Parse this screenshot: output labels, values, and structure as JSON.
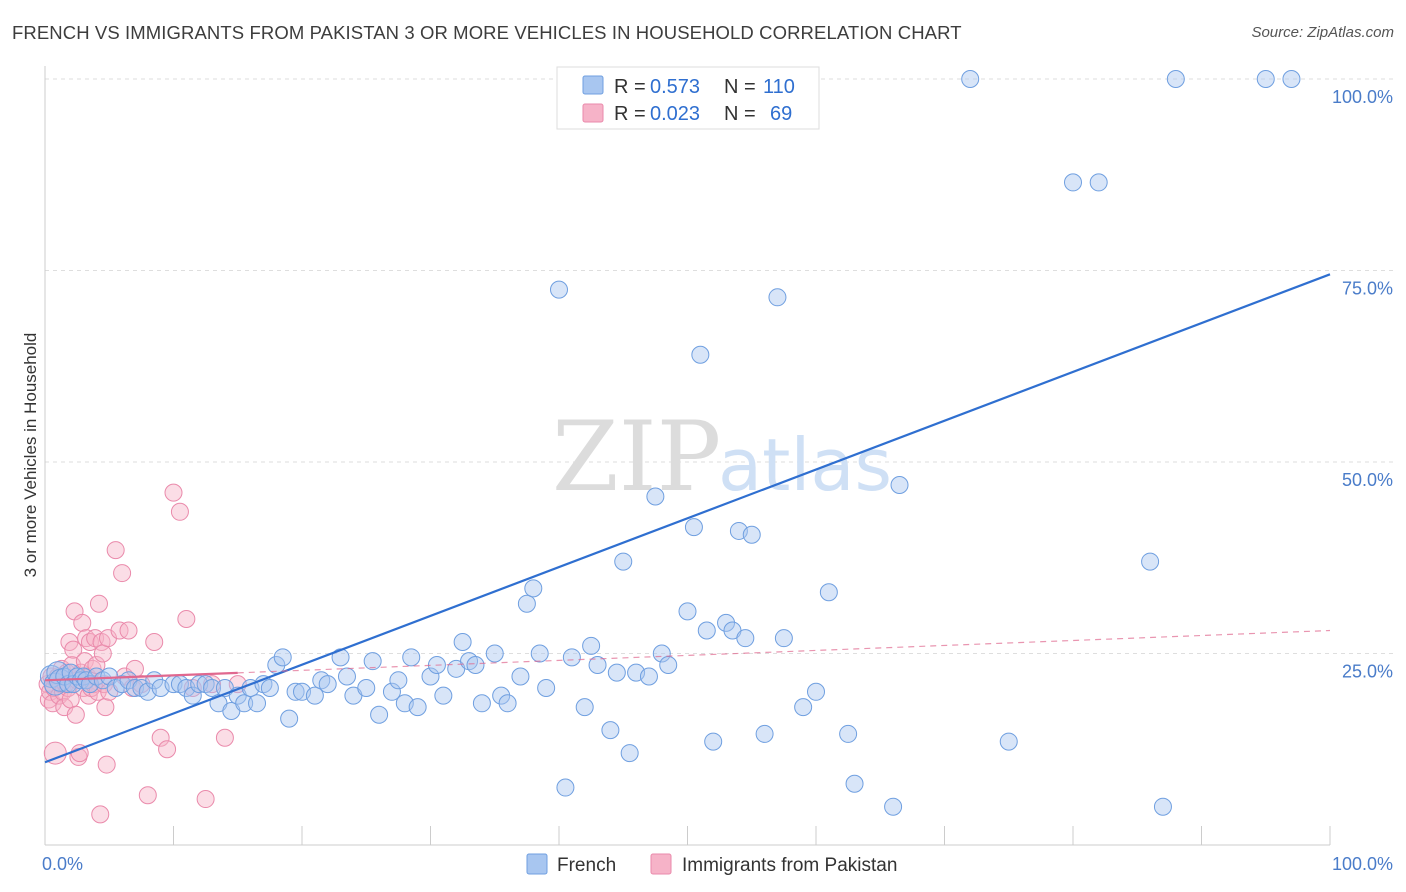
{
  "title": "FRENCH VS IMMIGRANTS FROM PAKISTAN 3 OR MORE VEHICLES IN HOUSEHOLD CORRELATION CHART",
  "source": "Source: ZipAtlas.com",
  "watermark": {
    "zip": "ZIP",
    "atlas": "atlas"
  },
  "colors": {
    "french": "#a8c6f0",
    "french_stroke": "#6f9fe0",
    "french_line": "#2f6fd0",
    "pakistan": "#f6b3c8",
    "pakistan_stroke": "#ea8aab",
    "pakistan_line": "#e0688f"
  },
  "legend_box": {
    "rows": [
      {
        "r_label": "R =",
        "r_value": "0.573",
        "n_label": "N =",
        "n_value": "110"
      },
      {
        "r_label": "R =",
        "r_value": "0.023",
        "n_label": "N =",
        "n_value": "69"
      }
    ]
  },
  "bottom_legend": [
    "French",
    "Immigrants from Pakistan"
  ],
  "chart_data": {
    "type": "scatter",
    "xlabel": "",
    "ylabel": "3 or more Vehicles in Household",
    "xlim": [
      0,
      100
    ],
    "ylim": [
      0,
      100
    ],
    "x_tick_labels": [
      "0.0%",
      "100.0%"
    ],
    "y_tick_labels": [
      {
        "value": 100,
        "label": "100.0%"
      },
      {
        "value": 75,
        "label": "75.0%"
      },
      {
        "value": 50,
        "label": "50.0%"
      },
      {
        "value": 25,
        "label": "25.0%"
      }
    ],
    "grid": "horizontal dashed",
    "legend_position": "top-center",
    "series": [
      {
        "name": "French",
        "R": 0.573,
        "N": 110,
        "trend": [
          [
            0,
            10.8
          ],
          [
            100,
            74.5
          ]
        ],
        "points": [
          [
            0.5,
            22
          ],
          [
            0.8,
            21
          ],
          [
            1,
            22.5
          ],
          [
            1.2,
            21.5
          ],
          [
            1.5,
            22
          ],
          [
            1.8,
            21
          ],
          [
            2,
            22.5
          ],
          [
            2.2,
            21
          ],
          [
            2.5,
            22
          ],
          [
            2.8,
            21.5
          ],
          [
            3,
            22
          ],
          [
            3.2,
            21.5
          ],
          [
            3.5,
            21
          ],
          [
            4,
            22
          ],
          [
            4.5,
            21.5
          ],
          [
            5,
            22
          ],
          [
            5.5,
            20.5
          ],
          [
            6,
            21
          ],
          [
            6.5,
            21.5
          ],
          [
            7,
            20.5
          ],
          [
            7.5,
            20.5
          ],
          [
            8,
            20
          ],
          [
            8.5,
            21.5
          ],
          [
            9,
            20.5
          ],
          [
            10,
            21
          ],
          [
            10.5,
            21
          ],
          [
            11,
            20.5
          ],
          [
            11.5,
            19.5
          ],
          [
            12,
            21
          ],
          [
            12.5,
            21
          ],
          [
            13,
            20.5
          ],
          [
            13.5,
            18.5
          ],
          [
            14,
            20.5
          ],
          [
            14.5,
            17.5
          ],
          [
            15,
            19.5
          ],
          [
            15.5,
            18.5
          ],
          [
            16,
            20.5
          ],
          [
            16.5,
            18.5
          ],
          [
            17,
            21
          ],
          [
            17.5,
            20.5
          ],
          [
            18,
            23.5
          ],
          [
            18.5,
            24.5
          ],
          [
            19,
            16.5
          ],
          [
            19.5,
            20
          ],
          [
            20,
            20
          ],
          [
            21,
            19.5
          ],
          [
            21.5,
            21.5
          ],
          [
            22,
            21
          ],
          [
            23,
            24.5
          ],
          [
            23.5,
            22
          ],
          [
            24,
            19.5
          ],
          [
            25,
            20.5
          ],
          [
            25.5,
            24
          ],
          [
            26,
            17
          ],
          [
            27,
            20
          ],
          [
            27.5,
            21.5
          ],
          [
            28,
            18.5
          ],
          [
            28.5,
            24.5
          ],
          [
            29,
            18
          ],
          [
            30,
            22
          ],
          [
            30.5,
            23.5
          ],
          [
            31,
            19.5
          ],
          [
            32,
            23
          ],
          [
            32.5,
            26.5
          ],
          [
            33,
            24
          ],
          [
            33.5,
            23.5
          ],
          [
            34,
            18.5
          ],
          [
            35,
            25
          ],
          [
            35.5,
            19.5
          ],
          [
            36,
            18.5
          ],
          [
            37,
            22
          ],
          [
            37.5,
            31.5
          ],
          [
            38,
            33.5
          ],
          [
            38.5,
            25
          ],
          [
            39,
            20.5
          ],
          [
            40,
            72.5
          ],
          [
            40.5,
            7.5
          ],
          [
            41,
            24.5
          ],
          [
            42,
            18
          ],
          [
            42.5,
            26
          ],
          [
            43,
            23.5
          ],
          [
            44,
            15
          ],
          [
            44.5,
            22.5
          ],
          [
            45,
            37
          ],
          [
            45.5,
            12
          ],
          [
            46,
            22.5
          ],
          [
            47,
            22
          ],
          [
            47.5,
            45.5
          ],
          [
            48,
            25
          ],
          [
            48.5,
            23.5
          ],
          [
            50,
            30.5
          ],
          [
            50.5,
            41.5
          ],
          [
            51,
            64
          ],
          [
            51.5,
            28
          ],
          [
            52,
            13.5
          ],
          [
            53,
            29
          ],
          [
            53.5,
            28
          ],
          [
            54,
            41
          ],
          [
            54.5,
            27
          ],
          [
            55,
            40.5
          ],
          [
            56,
            14.5
          ],
          [
            57,
            71.5
          ],
          [
            57.5,
            27
          ],
          [
            59,
            18
          ],
          [
            60,
            20
          ],
          [
            61,
            33
          ],
          [
            62.5,
            14.5
          ],
          [
            63,
            8
          ],
          [
            66,
            5
          ],
          [
            66.5,
            47
          ],
          [
            72,
            100
          ],
          [
            75,
            13.5
          ],
          [
            80,
            86.5
          ],
          [
            82,
            86.5
          ],
          [
            86,
            37
          ],
          [
            87,
            5
          ],
          [
            88,
            100
          ],
          [
            95,
            100
          ],
          [
            97,
            100
          ]
        ]
      },
      {
        "name": "Immigrants from Pakistan",
        "R": 0.023,
        "N": 69,
        "trend": [
          [
            0,
            21.5
          ],
          [
            100,
            28
          ]
        ],
        "points": [
          [
            0.2,
            21
          ],
          [
            0.3,
            19
          ],
          [
            0.4,
            20
          ],
          [
            0.5,
            22
          ],
          [
            0.6,
            18.5
          ],
          [
            0.7,
            20.5
          ],
          [
            0.8,
            12
          ],
          [
            0.9,
            21.5
          ],
          [
            1,
            22
          ],
          [
            1.1,
            19.5
          ],
          [
            1.2,
            21
          ],
          [
            1.3,
            23
          ],
          [
            1.4,
            20
          ],
          [
            1.5,
            18
          ],
          [
            1.6,
            21
          ],
          [
            1.7,
            22.5
          ],
          [
            1.8,
            20.5
          ],
          [
            1.9,
            26.5
          ],
          [
            2,
            19
          ],
          [
            2.1,
            23.5
          ],
          [
            2.2,
            25.5
          ],
          [
            2.3,
            30.5
          ],
          [
            2.4,
            17
          ],
          [
            2.5,
            21.5
          ],
          [
            2.6,
            11.5
          ],
          [
            2.7,
            12
          ],
          [
            2.8,
            22.5
          ],
          [
            2.9,
            29
          ],
          [
            3,
            20.5
          ],
          [
            3.1,
            24
          ],
          [
            3.2,
            27
          ],
          [
            3.3,
            22
          ],
          [
            3.4,
            19.5
          ],
          [
            3.5,
            26.5
          ],
          [
            3.6,
            20.5
          ],
          [
            3.7,
            23
          ],
          [
            3.8,
            21
          ],
          [
            3.9,
            27
          ],
          [
            4,
            23.5
          ],
          [
            4.1,
            20
          ],
          [
            4.2,
            31.5
          ],
          [
            4.3,
            4
          ],
          [
            4.4,
            26.5
          ],
          [
            4.5,
            25
          ],
          [
            4.6,
            21
          ],
          [
            4.7,
            18
          ],
          [
            4.8,
            10.5
          ],
          [
            4.9,
            27
          ],
          [
            5,
            20
          ],
          [
            5.5,
            38.5
          ],
          [
            5.8,
            28
          ],
          [
            6,
            35.5
          ],
          [
            6.2,
            22
          ],
          [
            6.5,
            28
          ],
          [
            6.8,
            20.5
          ],
          [
            7,
            23
          ],
          [
            7.5,
            21
          ],
          [
            8,
            6.5
          ],
          [
            8.5,
            26.5
          ],
          [
            9,
            14
          ],
          [
            9.5,
            12.5
          ],
          [
            10,
            46
          ],
          [
            10.5,
            43.5
          ],
          [
            11,
            29.5
          ],
          [
            11.5,
            20.5
          ],
          [
            12.5,
            6
          ],
          [
            13,
            21
          ],
          [
            14,
            14
          ],
          [
            15,
            21
          ]
        ]
      }
    ]
  }
}
